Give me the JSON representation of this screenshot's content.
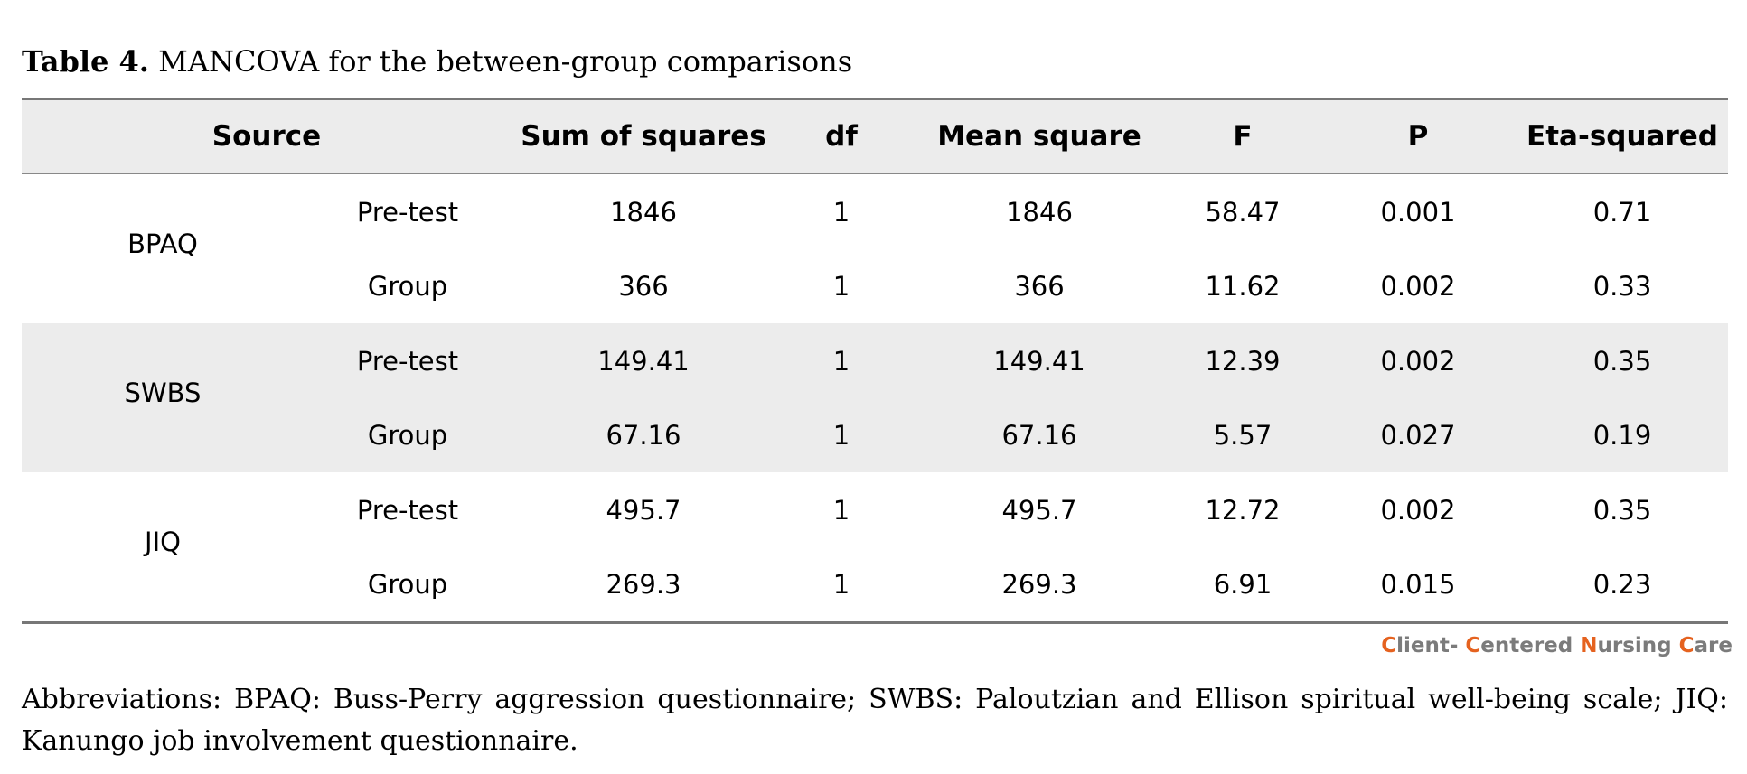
{
  "caption": {
    "label": "Table 4.",
    "title": " MANCOVA for the between-group comparisons"
  },
  "table": {
    "headers": {
      "source": "Source",
      "sum_of_squares": "Sum of squares",
      "df": "df",
      "mean_square": "Mean square",
      "f": "F",
      "p": "P",
      "eta_squared": "Eta-squared"
    },
    "groups": [
      {
        "name": "BPAQ",
        "rows": [
          {
            "effect": "Pre-test",
            "ss": "1846",
            "df": "1",
            "ms": "1846",
            "f": "58.47",
            "p": "0.001",
            "eta": "0.71"
          },
          {
            "effect": "Group",
            "ss": "366",
            "df": "1",
            "ms": "366",
            "f": "11.62",
            "p": "0.002",
            "eta": "0.33"
          }
        ]
      },
      {
        "name": "SWBS",
        "rows": [
          {
            "effect": "Pre-test",
            "ss": "149.41",
            "df": "1",
            "ms": "149.41",
            "f": "12.39",
            "p": "0.002",
            "eta": "0.35"
          },
          {
            "effect": "Group",
            "ss": "67.16",
            "df": "1",
            "ms": "67.16",
            "f": "5.57",
            "p": "0.027",
            "eta": "0.19"
          }
        ]
      },
      {
        "name": "JIQ",
        "rows": [
          {
            "effect": "Pre-test",
            "ss": "495.7",
            "df": "1",
            "ms": "495.7",
            "f": "12.72",
            "p": "0.002",
            "eta": "0.35"
          },
          {
            "effect": "Group",
            "ss": "269.3",
            "df": "1",
            "ms": "269.3",
            "f": "6.91",
            "p": "0.015",
            "eta": "0.23"
          }
        ]
      }
    ]
  },
  "brand": {
    "c1": "C",
    "t1": "lient- ",
    "c2": "C",
    "t2": "entered ",
    "c3": "N",
    "t3": "ursing ",
    "c4": "C",
    "t4": "are",
    "accent_color": "#e5621f",
    "text_color": "#7b7b7b"
  },
  "note": "Abbreviations: BPAQ: Buss-Perry aggression questionnaire; SWBS: Paloutzian and Ellison spiritual well-being scale; JIQ: Kanungo job involvement questionnaire."
}
